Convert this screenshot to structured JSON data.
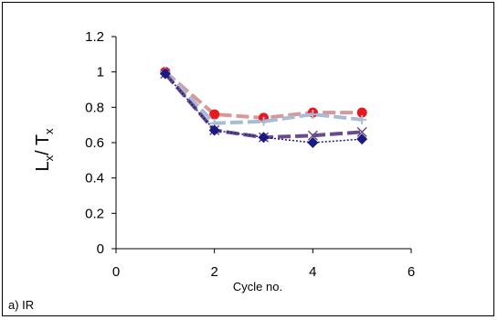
{
  "chart_data": {
    "type": "line",
    "panel_label": "a) IR",
    "xlabel": "Cycle no.",
    "ylabel_main": "L",
    "ylabel_main_sub": "x",
    "ylabel_sep": "/ ",
    "ylabel_den": "T",
    "ylabel_den_sub": "x",
    "xlim": [
      0,
      6
    ],
    "ylim": [
      0,
      1.2
    ],
    "x_ticks": [
      0,
      2,
      4,
      6
    ],
    "y_ticks": [
      0,
      0.2,
      0.4,
      0.6,
      0.8,
      1,
      1.2
    ],
    "x_tick_labels": [
      "0",
      "2",
      "4",
      "6"
    ],
    "y_tick_labels": [
      "0",
      "0.2",
      "0.4",
      "0.6",
      "0.8",
      "1",
      "1.2"
    ],
    "grid": false,
    "legend": "none",
    "series": [
      {
        "x": [
          1,
          2,
          3,
          4,
          5
        ],
        "values": [
          1.0,
          0.76,
          0.74,
          0.77,
          0.77
        ],
        "marker": "circle",
        "color": "#e8191c",
        "line_color": "#d99797",
        "line_style": "long-dash"
      },
      {
        "x": [
          1,
          2,
          3,
          4,
          5
        ],
        "values": [
          1.0,
          0.71,
          0.72,
          0.76,
          0.73
        ],
        "marker": "plus",
        "color": "#a8bcd6",
        "line_color": "#a8bcd6",
        "line_style": "long-dash"
      },
      {
        "x": [
          1,
          2,
          3,
          4,
          5
        ],
        "values": [
          0.99,
          0.67,
          0.63,
          0.64,
          0.66
        ],
        "marker": "cross",
        "color": "#6a4c8c",
        "line_color": "#6a4c8c",
        "line_style": "long-dash"
      },
      {
        "x": [
          1,
          2,
          3,
          4,
          5
        ],
        "values": [
          0.99,
          0.67,
          0.63,
          0.6,
          0.62
        ],
        "marker": "diamond",
        "color": "#1a1a80",
        "line_color": "#1a1a80",
        "line_style": "dotted"
      }
    ]
  }
}
